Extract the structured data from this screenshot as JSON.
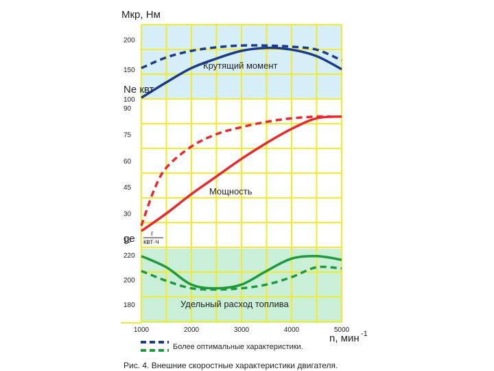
{
  "chart_data": {
    "type": "line",
    "x_axis": {
      "label": "n, мин",
      "label_superscript": "-1",
      "range": [
        1000,
        5000
      ],
      "ticks": [
        1000,
        2000,
        3000,
        4000,
        5000
      ]
    },
    "panels": [
      {
        "id": "torque",
        "axis_label": "Мкр, Нм",
        "ylim": [
          100,
          225
        ],
        "ticks": [
          100,
          150,
          200
        ],
        "title": "Крутящий момент",
        "series": [
          {
            "name": "current",
            "style": "solid",
            "color": "#1a3a8c",
            "x": [
              1000,
              1500,
              2000,
              2500,
              3000,
              3500,
              4000,
              4500,
              5000
            ],
            "y": [
              102,
              128,
              152,
              168,
              181,
              186,
              183,
              172,
              150
            ]
          },
          {
            "name": "optimal",
            "style": "dashed",
            "color": "#1a3a8c",
            "x": [
              1000,
              1500,
              2000,
              2500,
              3000,
              3500,
              4000,
              4500,
              5000
            ],
            "y": [
              152,
              170,
              181,
              187,
              190,
              190,
              188,
              183,
              165
            ]
          }
        ]
      },
      {
        "id": "power",
        "axis_label": "Ne квт",
        "ylim": [
          10,
          95
        ],
        "ticks": [
          15,
          30,
          45,
          60,
          75,
          90
        ],
        "title": "Мощность",
        "series": [
          {
            "name": "current",
            "style": "solid",
            "color": "#e8282b",
            "x": [
              1000,
              1500,
              2000,
              2500,
              3000,
              3500,
              4000,
              4500,
              5000
            ],
            "y": [
              20,
              30,
              41,
              51,
              61,
              70,
              78,
              84,
              85
            ]
          },
          {
            "name": "optimal",
            "style": "dashed",
            "color": "#e8282b",
            "x": [
              1000,
              1250,
              1500,
              2000,
              2500,
              3000,
              3500,
              4000,
              4500,
              4800
            ],
            "y": [
              23,
              43,
              56,
              68,
              75,
              79,
              82,
              84,
              85,
              85
            ]
          }
        ]
      },
      {
        "id": "fuel",
        "axis_label": "ge",
        "axis_label_fraction": {
          "num": "г",
          "den": "квт·ч"
        },
        "ylim": [
          165,
          225
        ],
        "ticks": [
          180,
          200,
          220
        ],
        "title": "Удельный расход топлива",
        "series": [
          {
            "name": "current",
            "style": "solid",
            "color": "#1e9a3a",
            "x": [
              1000,
              1500,
              2000,
              2500,
              3000,
              3500,
              4000,
              4500,
              5000
            ],
            "y": [
              219,
              210,
              196,
              193,
              196,
              207,
              217,
              219,
              216
            ]
          },
          {
            "name": "optimal",
            "style": "dashed",
            "color": "#1e9a3a",
            "x": [
              1000,
              1500,
              2000,
              2500,
              3000,
              3500,
              4000,
              4500,
              5000
            ],
            "y": [
              207,
              199,
              193,
              192,
              193,
              196,
              202,
              210,
              209
            ]
          }
        ]
      }
    ],
    "legend": {
      "text": "Более оптимальные характеристики.",
      "placement": "bottom"
    },
    "grid": true
  },
  "caption": "Рис. 4. Внешние скоростные характеристики двигателя.",
  "colors": {
    "grid": "#f2ea2c",
    "panel_blue": "#d6eef8",
    "panel_green": "#c9efd9",
    "legend_blue": "#1a3a8c",
    "legend_green": "#1e9a3a"
  }
}
